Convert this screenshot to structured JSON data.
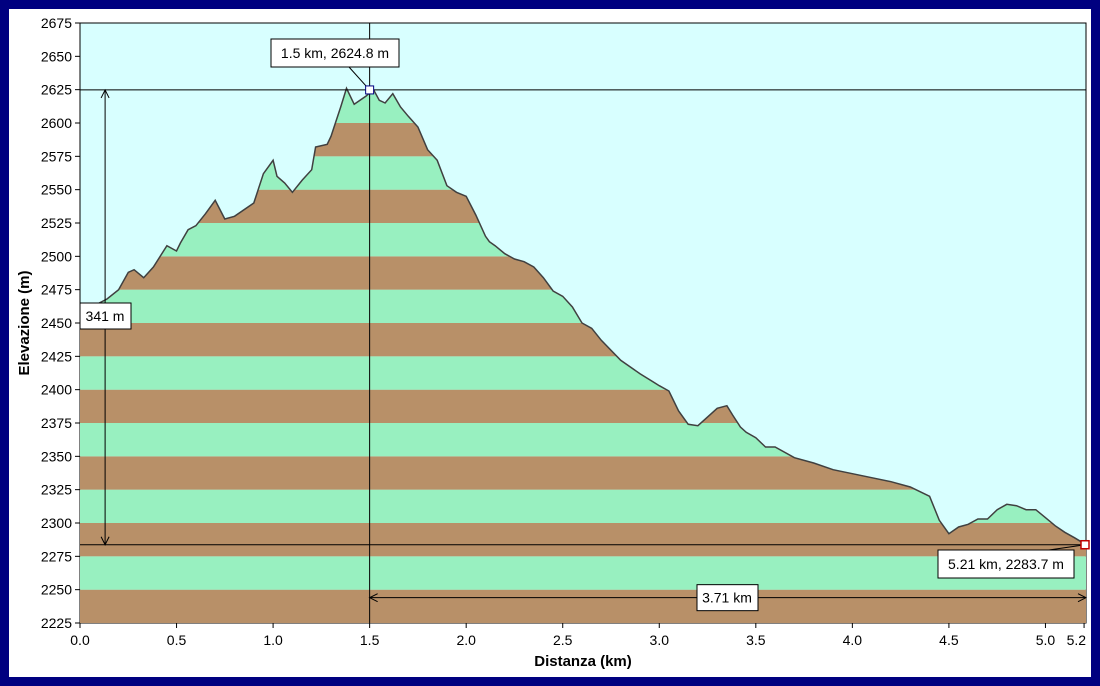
{
  "chart_data": {
    "type": "area",
    "xlabel": "Distanza  (km)",
    "ylabel": "Elevazione  (m)",
    "xlim": [
      0,
      5.21
    ],
    "ylim": [
      2225,
      2675
    ],
    "x_ticks": [
      "0.0",
      "0.5",
      "1.0",
      "1.5",
      "2.0",
      "2.5",
      "3.0",
      "3.5",
      "4.0",
      "4.5",
      "5.0",
      "5.2"
    ],
    "x_tick_values": [
      0,
      0.5,
      1.0,
      1.5,
      2.0,
      2.5,
      3.0,
      3.5,
      4.0,
      4.5,
      5.0,
      5.2
    ],
    "y_ticks": [
      "2225",
      "2250",
      "2275",
      "2300",
      "2325",
      "2350",
      "2375",
      "2400",
      "2425",
      "2450",
      "2475",
      "2500",
      "2525",
      "2550",
      "2575",
      "2600",
      "2625",
      "2650",
      "2675"
    ],
    "y_tick_values": [
      2225,
      2250,
      2275,
      2300,
      2325,
      2350,
      2375,
      2400,
      2425,
      2450,
      2475,
      2500,
      2525,
      2550,
      2575,
      2600,
      2625,
      2650,
      2675
    ],
    "band_interval_m": 25,
    "grid": false,
    "colors": {
      "background": "#d8ffff",
      "band_green": "#98f0c0",
      "band_brown": "#b89068",
      "profile_line": "#404040",
      "frame": "#000080"
    },
    "profile": {
      "x": [
        0.0,
        0.05,
        0.1,
        0.14,
        0.2,
        0.25,
        0.28,
        0.33,
        0.38,
        0.45,
        0.5,
        0.52,
        0.56,
        0.6,
        0.65,
        0.7,
        0.75,
        0.8,
        0.9,
        0.95,
        1.0,
        1.02,
        1.06,
        1.1,
        1.15,
        1.2,
        1.22,
        1.28,
        1.3,
        1.35,
        1.38,
        1.42,
        1.48,
        1.52,
        1.55,
        1.58,
        1.62,
        1.66,
        1.7,
        1.75,
        1.8,
        1.85,
        1.9,
        1.95,
        2.0,
        2.05,
        2.1,
        2.12,
        2.15,
        2.2,
        2.25,
        2.3,
        2.35,
        2.4,
        2.45,
        2.5,
        2.55,
        2.6,
        2.65,
        2.7,
        2.8,
        2.9,
        3.0,
        3.05,
        3.1,
        3.15,
        3.2,
        3.3,
        3.35,
        3.38,
        3.42,
        3.45,
        3.5,
        3.55,
        3.6,
        3.7,
        3.8,
        3.9,
        4.0,
        4.1,
        4.2,
        4.3,
        4.4,
        4.45,
        4.5,
        4.55,
        4.6,
        4.65,
        4.7,
        4.75,
        4.8,
        4.85,
        4.9,
        4.95,
        5.0,
        5.05,
        5.1,
        5.15,
        5.21
      ],
      "y": [
        2450,
        2458,
        2465,
        2468,
        2475,
        2488,
        2490,
        2484,
        2492,
        2508,
        2504,
        2510,
        2520,
        2523,
        2532,
        2542,
        2528,
        2530,
        2540,
        2562,
        2572,
        2560,
        2555,
        2548,
        2557,
        2565,
        2582,
        2584,
        2590,
        2612,
        2626,
        2614,
        2620,
        2625,
        2617,
        2615,
        2622,
        2612,
        2605,
        2597,
        2580,
        2572,
        2553,
        2548,
        2545,
        2531,
        2515,
        2511,
        2508,
        2502,
        2498,
        2496,
        2492,
        2484,
        2474,
        2470,
        2462,
        2450,
        2446,
        2437,
        2422,
        2412,
        2403,
        2399,
        2384,
        2374,
        2373,
        2386,
        2388,
        2381,
        2372,
        2368,
        2364,
        2357,
        2357,
        2349,
        2345,
        2340,
        2337,
        2334,
        2331,
        2327,
        2320,
        2302,
        2292,
        2297,
        2299,
        2303,
        2303,
        2310,
        2314,
        2313,
        2310,
        2310,
        2304,
        2298,
        2293,
        2289,
        2283.7
      ]
    }
  },
  "callouts": {
    "peak_label": "1.5 km, 2624.8 m",
    "end_label": "5.21 km, 2283.7 m",
    "elevation_diff_label": "341 m",
    "distance_diff_label": "3.71 km"
  },
  "markers": {
    "peak": {
      "x": 1.5,
      "y": 2624.8
    },
    "end": {
      "x": 5.21,
      "y": 2283.7
    },
    "elevation_measure_x": 0.13,
    "distance_measure_y": 2244
  }
}
